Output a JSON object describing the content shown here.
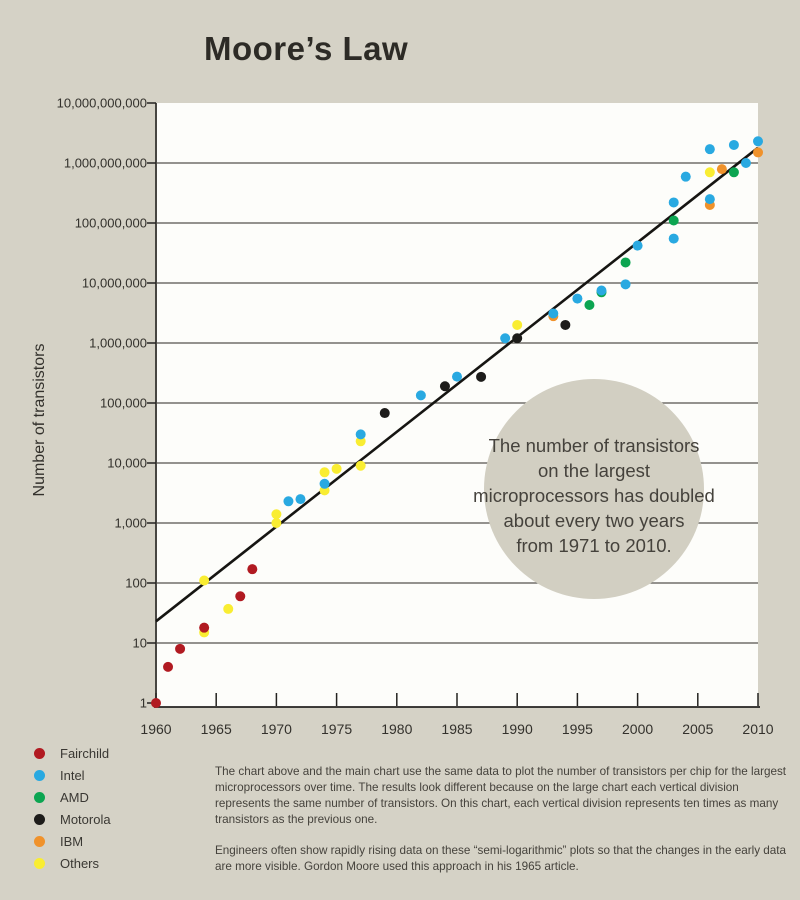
{
  "title": "Moore’s Law",
  "chart_data": {
    "type": "scatter",
    "title": "Moore’s Law",
    "xlabel": "",
    "ylabel": "Number of transistors",
    "y_scale": "logarithmic",
    "grid": "horizontal-decade-lines",
    "x_axis": {
      "min": 1960,
      "max": 2010,
      "ticks": [
        1960,
        1965,
        1970,
        1975,
        1980,
        1985,
        1990,
        1995,
        2000,
        2005,
        2010
      ]
    },
    "y_axis": {
      "min": 1,
      "max": 10000000000,
      "tick_values": [
        1,
        10,
        100,
        1000,
        10000,
        100000,
        1000000,
        10000000,
        100000000,
        1000000000,
        10000000000
      ],
      "tick_labels": [
        "1",
        "10",
        "100",
        "1,000",
        "10,000",
        "100,000",
        "1,000,000",
        "10,000,000",
        "100,000,000",
        "1,000,000,000",
        "10,000,000,000"
      ]
    },
    "series": [
      {
        "name": "Fairchild",
        "color": "#b11a21",
        "points": [
          [
            1960,
            1
          ],
          [
            1961,
            4
          ],
          [
            1962,
            8
          ],
          [
            1964,
            18
          ],
          [
            1967,
            60
          ],
          [
            1968,
            170
          ]
        ]
      },
      {
        "name": "Intel",
        "color": "#29a9e1",
        "points": [
          [
            1971,
            2300
          ],
          [
            1972,
            2500
          ],
          [
            1974,
            4500
          ],
          [
            1977,
            30000
          ],
          [
            1982,
            134000
          ],
          [
            1985,
            275000
          ],
          [
            1989,
            1200000
          ],
          [
            1993,
            3100000
          ],
          [
            1995,
            5500000
          ],
          [
            1997,
            7500000
          ],
          [
            1999,
            9500000
          ],
          [
            2000,
            42000000
          ],
          [
            2003,
            55000000
          ],
          [
            2003,
            220000000
          ],
          [
            2004,
            592000000
          ],
          [
            2006,
            250000000
          ],
          [
            2006,
            1700000000
          ],
          [
            2008,
            2000000000
          ],
          [
            2009,
            1000000000
          ],
          [
            2010,
            2300000000
          ]
        ]
      },
      {
        "name": "AMD",
        "color": "#0ca551",
        "points": [
          [
            1996,
            4300000
          ],
          [
            1997,
            7000000
          ],
          [
            1999,
            22000000
          ],
          [
            2003,
            110000000
          ],
          [
            2008,
            700000000
          ]
        ]
      },
      {
        "name": "Motorola",
        "color": "#1d1c1a",
        "points": [
          [
            1979,
            68000
          ],
          [
            1984,
            190000
          ],
          [
            1987,
            273000
          ],
          [
            1990,
            1200000
          ],
          [
            1994,
            2000000
          ]
        ]
      },
      {
        "name": "IBM",
        "color": "#f0922b",
        "points": [
          [
            1993,
            2800000
          ],
          [
            2006,
            200000000
          ],
          [
            2007,
            790000000
          ],
          [
            2010,
            1500000000
          ]
        ]
      },
      {
        "name": "Others",
        "color": "#f9ed32",
        "points": [
          [
            1964,
            15
          ],
          [
            1964,
            110
          ],
          [
            1966,
            37
          ],
          [
            1970,
            1000
          ],
          [
            1970,
            1400
          ],
          [
            1974,
            3500
          ],
          [
            1974,
            7000
          ],
          [
            1975,
            8000
          ],
          [
            1977,
            9000
          ],
          [
            1977,
            23000
          ],
          [
            1990,
            2000000
          ],
          [
            2006,
            700000000
          ]
        ]
      }
    ],
    "trendline": {
      "from": [
        1960,
        23
      ],
      "to": [
        2010,
        1800000000
      ],
      "color": "#161512"
    },
    "annotation": {
      "lines": [
        "The number of transistors",
        "on the largest",
        "microprocessors has doubled",
        "about every two years",
        "from 1971 to 2010."
      ]
    }
  },
  "legend": {
    "items": [
      {
        "label": "Fairchild",
        "color": "#b11a21"
      },
      {
        "label": "Intel",
        "color": "#29a9e1"
      },
      {
        "label": "AMD",
        "color": "#0ca551"
      },
      {
        "label": "Motorola",
        "color": "#1d1c1a"
      },
      {
        "label": "IBM",
        "color": "#f0922b"
      },
      {
        "label": "Others",
        "color": "#f9ed32"
      }
    ]
  },
  "footnotes": [
    "The chart above and the main chart use the same data to plot the number of transistors per chip for the largest microprocessors over time. The results look different because on the large chart each vertical division represents the same number of transistors. On this chart, each vertical division represents ten times as many transistors as the previous one.",
    "Engineers often show rapidly rising data on these “semi-logarithmic” plots so that the changes in the early data are more visible. Gordon Moore used this approach in his 1965 article."
  ],
  "colors": {
    "page_background": "#d5d2c6",
    "plot_background": "#fdfdfa",
    "gridline": "#55534e",
    "axis": "#242320",
    "annotation_circle": "#d2cfc2",
    "text": "#33312c"
  }
}
